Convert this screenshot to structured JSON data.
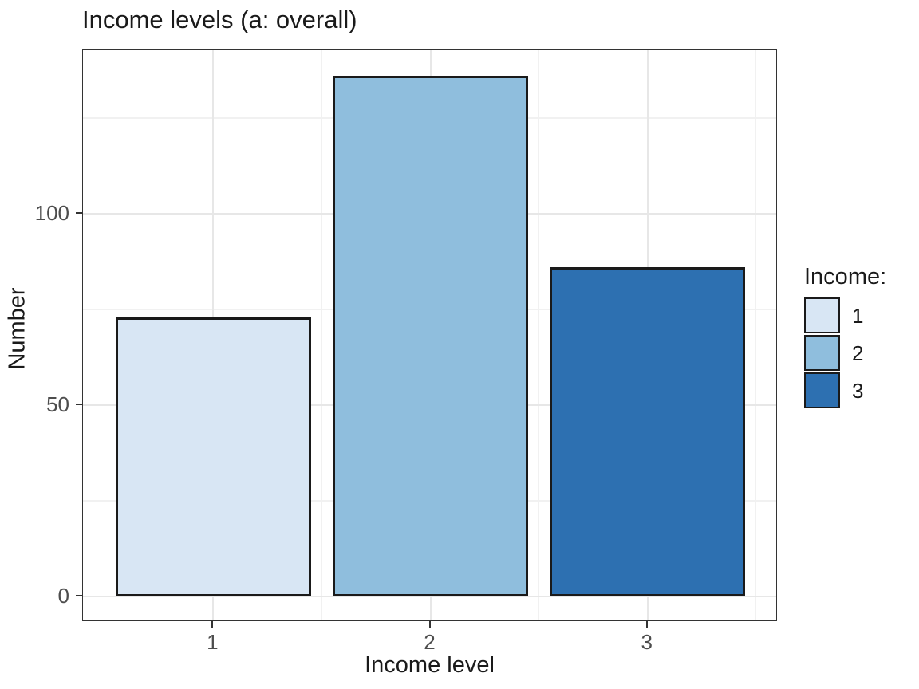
{
  "chart_data": {
    "type": "bar",
    "title": "Income levels (a: overall)",
    "xlabel": "Income level",
    "ylabel": "Number",
    "categories": [
      "1",
      "2",
      "3"
    ],
    "values": [
      73,
      136,
      86
    ],
    "yticks": [
      0,
      50,
      100
    ],
    "yticks_minor": [
      25,
      75,
      125
    ],
    "ylim": [
      -7,
      143
    ],
    "grid": "major+minor",
    "bar_colors": [
      "#D8E6F4",
      "#8FBEDD",
      "#2D70B1"
    ],
    "bar_border_color": "#1A1A1A",
    "legend": {
      "title": "Income:",
      "position": "right",
      "entries": [
        {
          "label": "1",
          "color": "#D8E6F4"
        },
        {
          "label": "2",
          "color": "#8FBEDD"
        },
        {
          "label": "3",
          "color": "#2D70B1"
        }
      ]
    }
  },
  "style": {
    "background": "#FFFFFF",
    "panel_border": "#333333",
    "grid_major": "#E7E7E7",
    "grid_minor": "#F1F1F1",
    "tick_color": "#333333",
    "tick_label_color": "#4D4D4D",
    "text_color": "#1A1A1A"
  }
}
